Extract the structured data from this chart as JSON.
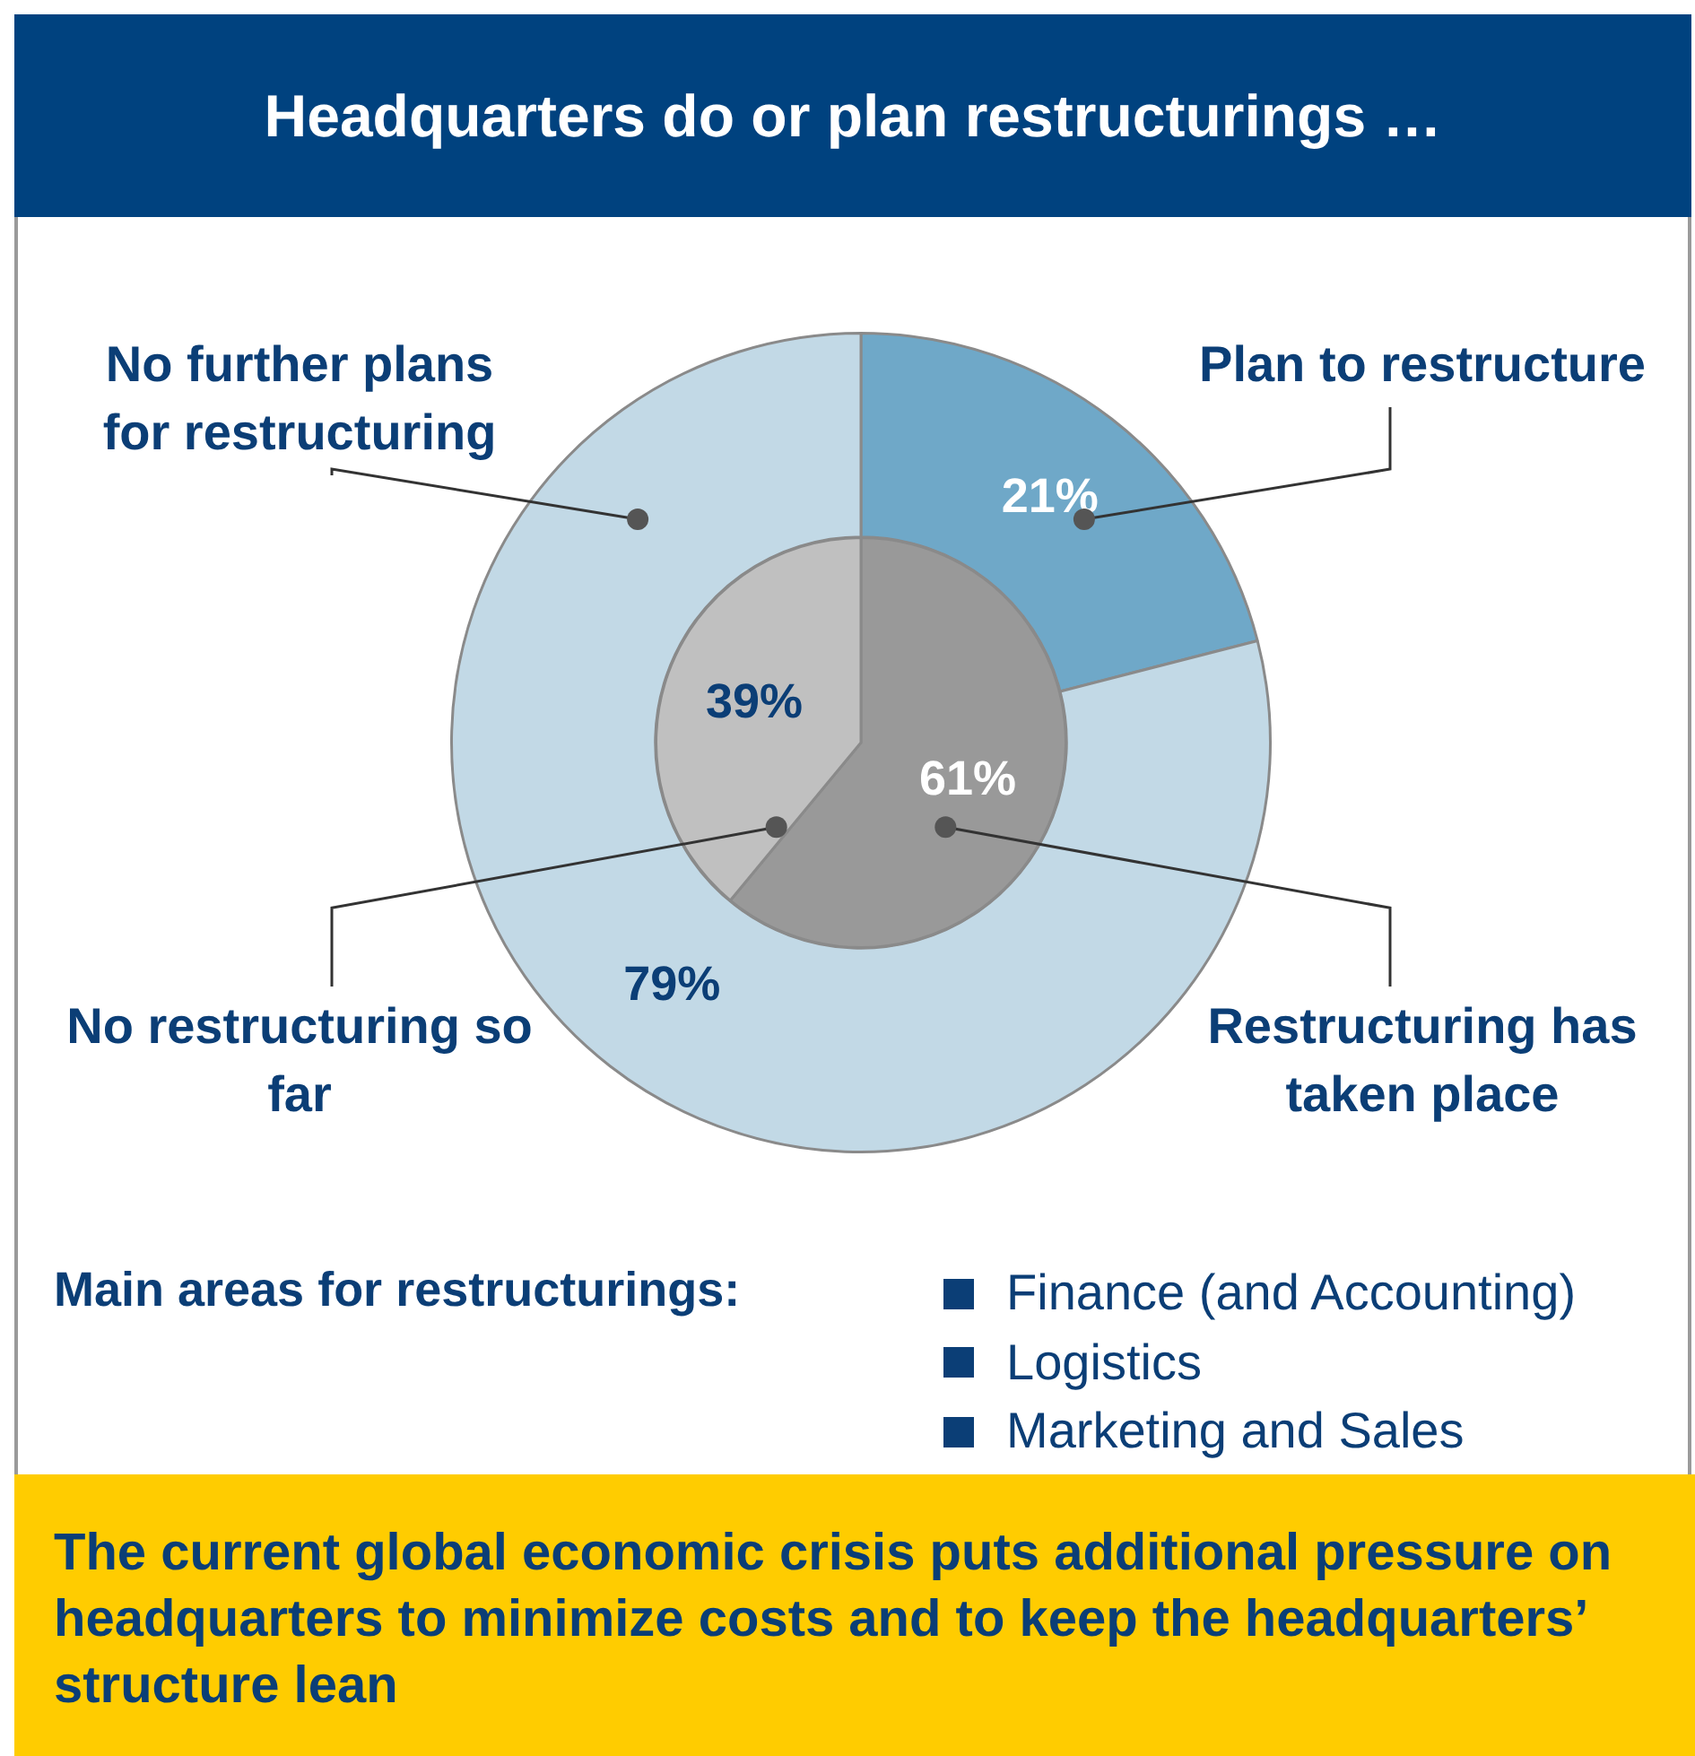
{
  "chart_data": [
    {
      "type": "donut",
      "title": "Headquarters do or plan restructurings …",
      "categories": [
        "Plan to restructure",
        "No further plans for restructuring"
      ],
      "values": [
        21,
        79
      ],
      "colors": [
        "#6fa8c8",
        "#c2d9e6"
      ],
      "value_labels": [
        "21%",
        "79%"
      ],
      "legend": false,
      "annotations": [
        "Main areas for restructurings:",
        "Finance (and Accounting)",
        "Logistics",
        "Marketing and Sales",
        "The current global economic crisis puts additional pressure on headquarters to minimize costs and to keep the headquarters’ structure lean"
      ]
    },
    {
      "type": "pie",
      "categories": [
        "Restructuring has taken place",
        "No restructuring so far"
      ],
      "values": [
        61,
        39
      ],
      "colors": [
        "#999999",
        "#c0c0c0"
      ],
      "value_labels": [
        "61%",
        "39%"
      ],
      "legend": false
    }
  ]
}
